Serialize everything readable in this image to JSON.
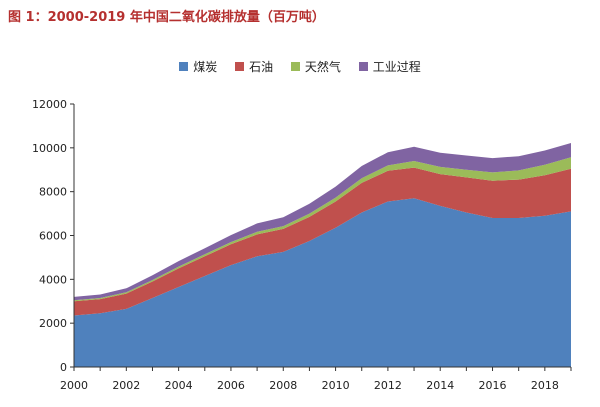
{
  "figure": {
    "title": "图 1：2000-2019 年中国二氧化碳排放量（百万吨）"
  },
  "chart_data": {
    "type": "area",
    "stacked": true,
    "x": [
      2000,
      2001,
      2002,
      2003,
      2004,
      2005,
      2006,
      2007,
      2008,
      2009,
      2010,
      2011,
      2012,
      2013,
      2014,
      2015,
      2016,
      2017,
      2018,
      2019
    ],
    "series": [
      {
        "name": "煤炭",
        "color": "#4f81bd",
        "values": [
          2350,
          2450,
          2650,
          3150,
          3650,
          4150,
          4650,
          5050,
          5250,
          5750,
          6350,
          7050,
          7550,
          7700,
          7350,
          7050,
          6800,
          6800,
          6900,
          7100
        ]
      },
      {
        "name": "石油",
        "color": "#c0504d",
        "values": [
          650,
          650,
          700,
          750,
          850,
          900,
          950,
          1000,
          1050,
          1100,
          1200,
          1350,
          1400,
          1400,
          1450,
          1600,
          1700,
          1750,
          1850,
          1950
        ]
      },
      {
        "name": "天然气",
        "color": "#9bbb59",
        "values": [
          50,
          50,
          60,
          70,
          80,
          90,
          100,
          120,
          130,
          150,
          180,
          210,
          250,
          300,
          330,
          350,
          380,
          420,
          480,
          520
        ]
      },
      {
        "name": "工业过程",
        "color": "#8064a2",
        "values": [
          150,
          160,
          180,
          220,
          250,
          280,
          320,
          380,
          400,
          450,
          500,
          560,
          600,
          650,
          650,
          650,
          650,
          650,
          650,
          650
        ]
      }
    ],
    "ylim": [
      0,
      12000
    ],
    "yticks": [
      0,
      2000,
      4000,
      6000,
      8000,
      10000,
      12000
    ],
    "xticks": [
      2000,
      2002,
      2004,
      2006,
      2008,
      2010,
      2012,
      2014,
      2016,
      2018
    ],
    "legend_position": "top-center",
    "grid": false
  }
}
